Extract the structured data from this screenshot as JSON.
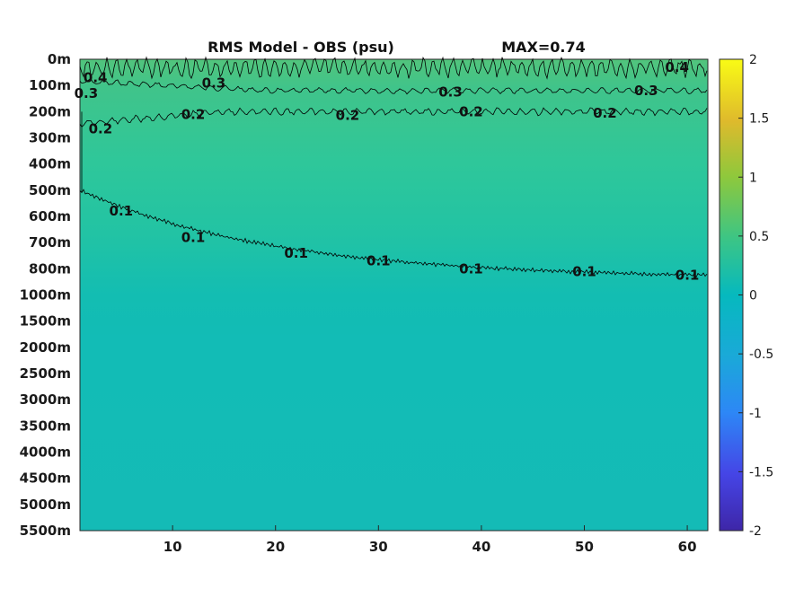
{
  "chart_data": {
    "type": "heatmap",
    "title": "RMS Model - OBS (psu)",
    "max_label": "MAX=0.74",
    "x_ticks": [
      10,
      20,
      30,
      40,
      50,
      60
    ],
    "xlim": [
      1,
      62
    ],
    "y_ticks": [
      "0m",
      "100m",
      "200m",
      "300m",
      "400m",
      "500m",
      "600m",
      "700m",
      "800m",
      "1000m",
      "1500m",
      "2000m",
      "2500m",
      "3000m",
      "3500m",
      "4000m",
      "4500m",
      "5000m",
      "5500m"
    ],
    "colorbar": {
      "range": [
        -2,
        2
      ],
      "ticks": [
        "2",
        "1.5",
        "1",
        "0.5",
        "0",
        "-0.5",
        "-1",
        "-1.5",
        "-2"
      ],
      "colormap": "parula"
    },
    "contours": [
      {
        "level": 0.4,
        "depth": "50m"
      },
      {
        "level": 0.3,
        "depth": "120m"
      },
      {
        "level": 0.2,
        "depth": "200m"
      },
      {
        "level": 0.1,
        "depth_at_x1": "500m",
        "depth_at_x62": "850m"
      }
    ],
    "contour_labels": [
      {
        "text": "0.4",
        "x": 2.5,
        "depth": "70m"
      },
      {
        "text": "0.3",
        "x": 1.6,
        "depth": "130m"
      },
      {
        "text": "0.3",
        "x": 14,
        "depth": "90m"
      },
      {
        "text": "0.3",
        "x": 37,
        "depth": "125m"
      },
      {
        "text": "0.3",
        "x": 56,
        "depth": "120m"
      },
      {
        "text": "0.4",
        "x": 59,
        "depth": "30m"
      },
      {
        "text": "0.2",
        "x": 3,
        "depth": "265m"
      },
      {
        "text": "0.2",
        "x": 12,
        "depth": "210m"
      },
      {
        "text": "0.2",
        "x": 27,
        "depth": "215m"
      },
      {
        "text": "0.2",
        "x": 39,
        "depth": "200m"
      },
      {
        "text": "0.2",
        "x": 52,
        "depth": "205m"
      },
      {
        "text": "0.1",
        "x": 5,
        "depth": "580m"
      },
      {
        "text": "0.1",
        "x": 12,
        "depth": "680m"
      },
      {
        "text": "0.1",
        "x": 22,
        "depth": "740m"
      },
      {
        "text": "0.1",
        "x": 30,
        "depth": "770m"
      },
      {
        "text": "0.1",
        "x": 39,
        "depth": "800m"
      },
      {
        "text": "0.1",
        "x": 50,
        "depth": "820m"
      },
      {
        "text": "0.1",
        "x": 60,
        "depth": "850m"
      }
    ]
  }
}
